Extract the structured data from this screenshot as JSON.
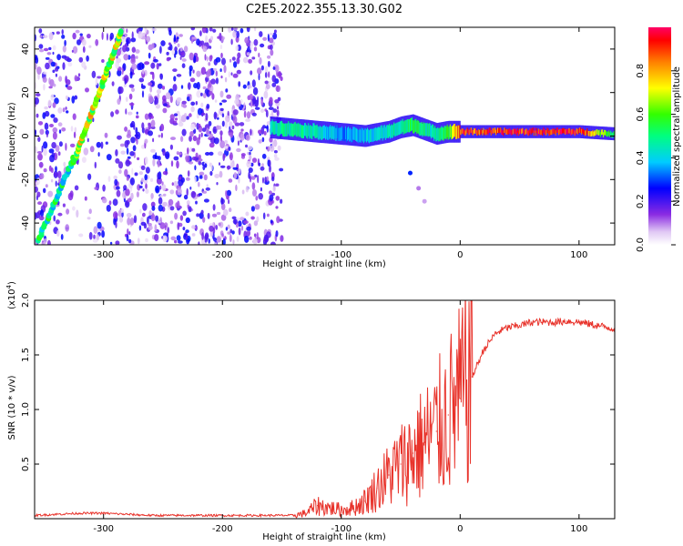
{
  "figure_title": "C2E5.2022.355.13.30.G02",
  "colorbar": {
    "label": "Normalized spectral amplitude",
    "ticks": [
      "0.0",
      "0.2",
      "0.4",
      "0.6",
      "0.8"
    ]
  },
  "chart_data": [
    {
      "type": "heatmap",
      "title": "C2E5.2022.355.13.30.G02",
      "xlabel": "Height of straight line (km)",
      "ylabel": "Frequency (Hz)",
      "xlim": [
        -358,
        130
      ],
      "ylim": [
        -50,
        50
      ],
      "xticks": [
        -300,
        -200,
        -100,
        0,
        100
      ],
      "yticks": [
        -40,
        -20,
        0,
        20,
        40
      ],
      "color_scale": {
        "min": 0.0,
        "max": 1.0,
        "label": "Normalized spectral amplitude"
      },
      "features": {
        "diagonal_streak": {
          "x": [
            -325,
            -285
          ],
          "y": [
            -12,
            48
          ],
          "amplitude": 0.7
        },
        "lower_diagonal_streak": {
          "x": [
            -355,
            -325
          ],
          "y": [
            -48,
            -10
          ],
          "amplitude": 0.5
        },
        "noise_region": {
          "x": [
            -358,
            -150
          ],
          "y": [
            -50,
            50
          ],
          "amplitude": 0.15
        },
        "central_band": {
          "x": [
            -160,
            -140,
            -120,
            -100,
            -80,
            -60,
            -50,
            -40,
            -30,
            -20,
            -10,
            0,
            20,
            60,
            100,
            130
          ],
          "y": [
            4,
            3,
            2,
            1,
            0,
            2,
            4,
            5,
            3,
            1,
            2,
            2,
            2,
            2,
            2,
            1
          ],
          "amplitude": [
            0.45,
            0.5,
            0.45,
            0.35,
            0.4,
            0.45,
            0.5,
            0.55,
            0.5,
            0.45,
            0.6,
            0.9,
            0.92,
            0.95,
            0.95,
            0.5
          ]
        }
      }
    },
    {
      "type": "line",
      "xlabel": "Height of straight line (km)",
      "ylabel": "SNR (10 * v/v)",
      "y_multiplier_label": "(x10",
      "y_multiplier_exp": "4",
      "xlim": [
        -358,
        130
      ],
      "ylim": [
        0,
        2.0
      ],
      "xticks": [
        -300,
        -200,
        -100,
        0,
        100
      ],
      "yticks": [
        0.5,
        1.0,
        1.5,
        2.0
      ],
      "series": [
        {
          "color": "#e8322a",
          "x": [
            -358,
            -340,
            -320,
            -300,
            -280,
            -260,
            -240,
            -220,
            -200,
            -180,
            -160,
            -140,
            -130,
            -120,
            -110,
            -100,
            -90,
            -80,
            -70,
            -60,
            -50,
            -40,
            -30,
            -20,
            -10,
            0,
            10,
            20,
            30,
            40,
            50,
            60,
            70,
            80,
            90,
            100,
            110,
            120,
            130
          ],
          "values": [
            0.03,
            0.04,
            0.05,
            0.05,
            0.04,
            0.03,
            0.03,
            0.03,
            0.03,
            0.03,
            0.03,
            0.03,
            0.05,
            0.12,
            0.1,
            0.08,
            0.1,
            0.16,
            0.28,
            0.4,
            0.5,
            0.6,
            0.7,
            0.8,
            0.95,
            1.1,
            1.3,
            1.55,
            1.7,
            1.75,
            1.77,
            1.8,
            1.8,
            1.8,
            1.81,
            1.8,
            1.78,
            1.76,
            1.74
          ]
        }
      ]
    }
  ]
}
